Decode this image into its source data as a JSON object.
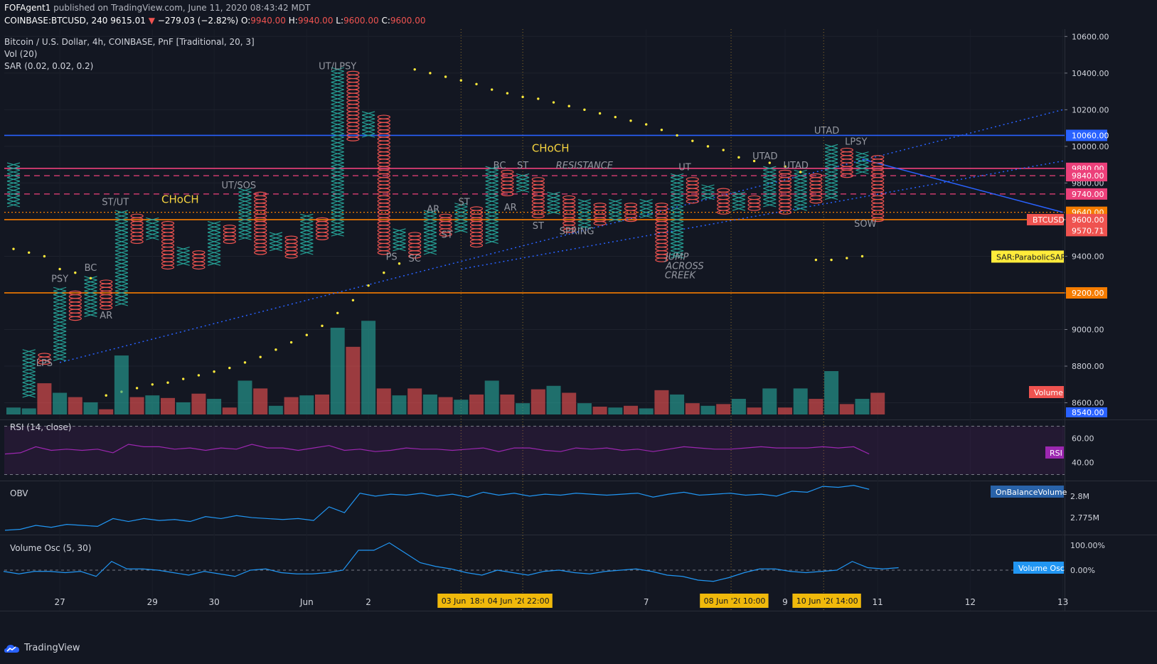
{
  "header": {
    "author": "FOFAgent1",
    "published": "published on TradingView.com, June 11, 2020 08:43:42 MDT",
    "symbol": "COINBASE:BTCUSD, 240",
    "last": "9615.01",
    "change": "−279.03 (−2.82%)",
    "o_label": "O:",
    "o": "9940.00",
    "h_label": "H:",
    "h": "9940.00",
    "l_label": "L:",
    "l": "9600.00",
    "c_label": "C:",
    "c": "9600.00"
  },
  "legend": {
    "main": "Bitcoin / U.S. Dollar, 4h, COINBASE, PnF [Traditional, 20, 3]",
    "vol": "Vol (20)",
    "sar": "SAR (0.02, 0.02, 0.2)"
  },
  "footer": {
    "brand": "TradingView"
  },
  "colors": {
    "background": "#131722",
    "x_color": "#26a69a",
    "o_color": "#ef5350",
    "volume_up": "#26a69a",
    "volume_down": "#ef5350",
    "sar": "#ffeb3b",
    "hline_blue": "#2962ff",
    "hline_orange": "#f57c00",
    "hline_pink": "#ec407a",
    "rsi": "#9c27b0",
    "obv": "#2196f3",
    "vosc": "#2196f3",
    "label_gold": "#f0b90b"
  },
  "chart_data": {
    "type": "pnf",
    "title": "Bitcoin / U.S. Dollar, 4h, COINBASE, PnF [Traditional, 20, 3]",
    "box_size": 20,
    "reversal": 3,
    "price_axis": {
      "range": [
        8540,
        10640
      ],
      "ticks": [
        8600,
        8800,
        9000,
        9200,
        9400,
        9600,
        9800,
        10000,
        10200,
        10400,
        10600
      ],
      "tick_labels": [
        "8600.00",
        "8800.00",
        "9000.00",
        "9200.00",
        "9400.00",
        "9600.00",
        "9800.00",
        "10000.00",
        "10200.00",
        "10400.00",
        "10600.00"
      ]
    },
    "time_axis": {
      "ticks": [
        {
          "label": "27",
          "col": 3
        },
        {
          "label": "29",
          "col": 9
        },
        {
          "label": "30",
          "col": 13
        },
        {
          "label": "Jun",
          "col": 19
        },
        {
          "label": "2",
          "col": 23
        },
        {
          "label": "7",
          "col": 41
        },
        {
          "label": "9",
          "col": 50
        },
        {
          "label": "11",
          "col": 56
        },
        {
          "label": "12",
          "col": 62
        },
        {
          "label": "13",
          "col": 68
        }
      ],
      "markers": [
        {
          "label": "03 Jun '20",
          "col": 29
        },
        {
          "label": "18:00",
          "col": 30.3
        },
        {
          "label": "04 Jun '20",
          "col": 32
        },
        {
          "label": "22:00",
          "col": 34
        },
        {
          "label": "08 Jun '20",
          "col": 46
        },
        {
          "label": "10:00",
          "col": 48
        },
        {
          "label": "10 Jun '20",
          "col": 52
        },
        {
          "label": "14:00",
          "col": 54
        }
      ],
      "vlines": [
        29,
        33,
        46.5,
        52.5
      ]
    },
    "columns": [
      {
        "t": "X",
        "lo": 9680,
        "hi": 9900
      },
      {
        "t": "X",
        "lo": 8640,
        "hi": 8880
      },
      {
        "t": "O",
        "lo": 8820,
        "hi": 8860
      },
      {
        "t": "X",
        "lo": 8840,
        "hi": 9220
      },
      {
        "t": "O",
        "lo": 9060,
        "hi": 9200
      },
      {
        "t": "X",
        "lo": 9080,
        "hi": 9280
      },
      {
        "t": "O",
        "lo": 9120,
        "hi": 9260
      },
      {
        "t": "X",
        "lo": 9140,
        "hi": 9640
      },
      {
        "t": "O",
        "lo": 9480,
        "hi": 9620
      },
      {
        "t": "X",
        "lo": 9500,
        "hi": 9600
      },
      {
        "t": "O",
        "lo": 9340,
        "hi": 9580
      },
      {
        "t": "X",
        "lo": 9360,
        "hi": 9440
      },
      {
        "t": "O",
        "lo": 9340,
        "hi": 9420
      },
      {
        "t": "X",
        "lo": 9360,
        "hi": 9580
      },
      {
        "t": "O",
        "lo": 9480,
        "hi": 9560
      },
      {
        "t": "X",
        "lo": 9500,
        "hi": 9760
      },
      {
        "t": "O",
        "lo": 9420,
        "hi": 9740
      },
      {
        "t": "X",
        "lo": 9440,
        "hi": 9520
      },
      {
        "t": "O",
        "lo": 9400,
        "hi": 9500
      },
      {
        "t": "X",
        "lo": 9420,
        "hi": 9620
      },
      {
        "t": "O",
        "lo": 9500,
        "hi": 9600
      },
      {
        "t": "X",
        "lo": 9520,
        "hi": 10420
      },
      {
        "t": "O",
        "lo": 10040,
        "hi": 10400
      },
      {
        "t": "X",
        "lo": 10060,
        "hi": 10180
      },
      {
        "t": "O",
        "lo": 9420,
        "hi": 10160
      },
      {
        "t": "X",
        "lo": 9440,
        "hi": 9540
      },
      {
        "t": "O",
        "lo": 9400,
        "hi": 9520
      },
      {
        "t": "X",
        "lo": 9420,
        "hi": 9640
      },
      {
        "t": "O",
        "lo": 9520,
        "hi": 9620
      },
      {
        "t": "X",
        "lo": 9540,
        "hi": 9680
      },
      {
        "t": "O",
        "lo": 9460,
        "hi": 9660
      },
      {
        "t": "X",
        "lo": 9480,
        "hi": 9880
      },
      {
        "t": "O",
        "lo": 9740,
        "hi": 9860
      },
      {
        "t": "X",
        "lo": 9760,
        "hi": 9840
      },
      {
        "t": "O",
        "lo": 9620,
        "hi": 9820
      },
      {
        "t": "X",
        "lo": 9640,
        "hi": 9740
      },
      {
        "t": "O",
        "lo": 9540,
        "hi": 9720
      },
      {
        "t": "X",
        "lo": 9560,
        "hi": 9700
      },
      {
        "t": "O",
        "lo": 9580,
        "hi": 9680
      },
      {
        "t": "X",
        "lo": 9600,
        "hi": 9700
      },
      {
        "t": "O",
        "lo": 9600,
        "hi": 9680
      },
      {
        "t": "X",
        "lo": 9620,
        "hi": 9700
      },
      {
        "t": "O",
        "lo": 9380,
        "hi": 9680
      },
      {
        "t": "X",
        "lo": 9400,
        "hi": 9840
      },
      {
        "t": "O",
        "lo": 9700,
        "hi": 9820
      },
      {
        "t": "X",
        "lo": 9720,
        "hi": 9780
      },
      {
        "t": "O",
        "lo": 9640,
        "hi": 9760
      },
      {
        "t": "X",
        "lo": 9660,
        "hi": 9740
      },
      {
        "t": "O",
        "lo": 9660,
        "hi": 9720
      },
      {
        "t": "X",
        "lo": 9680,
        "hi": 9880
      },
      {
        "t": "O",
        "lo": 9640,
        "hi": 9860
      },
      {
        "t": "X",
        "lo": 9660,
        "hi": 9860
      },
      {
        "t": "O",
        "lo": 9700,
        "hi": 9840
      },
      {
        "t": "X",
        "lo": 9720,
        "hi": 10000
      },
      {
        "t": "O",
        "lo": 9840,
        "hi": 9980
      },
      {
        "t": "X",
        "lo": 9860,
        "hi": 9960
      },
      {
        "t": "O",
        "lo": 9600,
        "hi": 9940
      }
    ],
    "sar": [
      {
        "col": 0,
        "v": 9440
      },
      {
        "col": 1,
        "v": 9420
      },
      {
        "col": 2,
        "v": 9400
      },
      {
        "col": 3,
        "v": 9330
      },
      {
        "col": 4,
        "v": 9310
      },
      {
        "col": 5,
        "v": 9280
      },
      {
        "col": 6,
        "v": 8640
      },
      {
        "col": 7,
        "v": 8660
      },
      {
        "col": 8,
        "v": 8680
      },
      {
        "col": 9,
        "v": 8700
      },
      {
        "col": 10,
        "v": 8710
      },
      {
        "col": 11,
        "v": 8730
      },
      {
        "col": 12,
        "v": 8750
      },
      {
        "col": 13,
        "v": 8770
      },
      {
        "col": 14,
        "v": 8790
      },
      {
        "col": 15,
        "v": 8820
      },
      {
        "col": 16,
        "v": 8850
      },
      {
        "col": 17,
        "v": 8890
      },
      {
        "col": 18,
        "v": 8930
      },
      {
        "col": 19,
        "v": 8970
      },
      {
        "col": 20,
        "v": 9020
      },
      {
        "col": 21,
        "v": 9090
      },
      {
        "col": 22,
        "v": 9160
      },
      {
        "col": 23,
        "v": 9240
      },
      {
        "col": 24,
        "v": 9310
      },
      {
        "col": 25,
        "v": 9360
      },
      {
        "col": 26,
        "v": 10420
      },
      {
        "col": 27,
        "v": 10400
      },
      {
        "col": 28,
        "v": 10380
      },
      {
        "col": 29,
        "v": 10360
      },
      {
        "col": 30,
        "v": 10340
      },
      {
        "col": 31,
        "v": 10310
      },
      {
        "col": 32,
        "v": 10290
      },
      {
        "col": 33,
        "v": 10270
      },
      {
        "col": 34,
        "v": 10260
      },
      {
        "col": 35,
        "v": 10240
      },
      {
        "col": 36,
        "v": 10220
      },
      {
        "col": 37,
        "v": 10200
      },
      {
        "col": 38,
        "v": 10180
      },
      {
        "col": 39,
        "v": 10160
      },
      {
        "col": 40,
        "v": 10140
      },
      {
        "col": 41,
        "v": 10120
      },
      {
        "col": 42,
        "v": 10090
      },
      {
        "col": 43,
        "v": 10060
      },
      {
        "col": 44,
        "v": 10030
      },
      {
        "col": 45,
        "v": 10000
      },
      {
        "col": 46,
        "v": 9980
      },
      {
        "col": 47,
        "v": 9940
      },
      {
        "col": 48,
        "v": 9920
      },
      {
        "col": 49,
        "v": 9910
      },
      {
        "col": 50,
        "v": 9890
      },
      {
        "col": 51,
        "v": 9860
      },
      {
        "col": 52,
        "v": 9380
      },
      {
        "col": 53,
        "v": 9380
      },
      {
        "col": 54,
        "v": 9390
      },
      {
        "col": 55,
        "v": 9400
      }
    ],
    "hlines": [
      {
        "price": 10060,
        "color": "#2962ff",
        "style": "solid",
        "label": "10060.00"
      },
      {
        "price": 9880,
        "color": "#ec407a",
        "style": "solid",
        "label": "9880.00"
      },
      {
        "price": 9840,
        "color": "#ec407a",
        "style": "dashed",
        "label": "9840.00"
      },
      {
        "price": 9740,
        "color": "#ec407a",
        "style": "dashed",
        "label": "9740.00"
      },
      {
        "price": 9640,
        "color": "#f57c00",
        "style": "dotted",
        "label": "9640.00"
      },
      {
        "price": 9600,
        "color": "#f57c00",
        "style": "solid",
        "label": "9600.00"
      },
      {
        "price": 9200,
        "color": "#f57c00",
        "style": "solid",
        "label": "9200.00"
      }
    ],
    "price_labels": [
      {
        "text": "BTCUSD",
        "value": "9600.00",
        "price": 9600
      },
      {
        "text": "",
        "value": "9570.71",
        "price": 9540
      },
      {
        "text": "SAR:ParabolicSAR",
        "value": "",
        "price": 9400
      }
    ],
    "trendlines": [
      {
        "from": [
          3,
          8820
        ],
        "to": [
          68,
          10200
        ],
        "style": "dotted"
      },
      {
        "from": [
          29,
          9330
        ],
        "to": [
          68,
          9920
        ],
        "style": "dotted"
      },
      {
        "from": [
          55,
          9930
        ],
        "to": [
          68,
          9640
        ],
        "style": "solid"
      }
    ],
    "annotations": [
      {
        "text": "LPS",
        "col": 2,
        "price": 8800,
        "color": "#9598a1"
      },
      {
        "text": "PSY",
        "col": 3,
        "price": 9260,
        "color": "#9598a1"
      },
      {
        "text": "BC",
        "col": 5,
        "price": 9320,
        "color": "#9598a1"
      },
      {
        "text": "AR",
        "col": 6,
        "price": 9060,
        "color": "#9598a1"
      },
      {
        "text": "ST/UT",
        "col": 6.6,
        "price": 9680,
        "color": "#9598a1"
      },
      {
        "text": "CHoCH",
        "col": 10.8,
        "price": 9690,
        "color": "#f5d33f"
      },
      {
        "text": "UT/SOS",
        "col": 14.6,
        "price": 9770,
        "color": "#9598a1"
      },
      {
        "text": "UT/LPSY",
        "col": 21,
        "price": 10420,
        "color": "#9598a1"
      },
      {
        "text": "PS",
        "col": 24.5,
        "price": 9380,
        "color": "#9598a1"
      },
      {
        "text": "SC",
        "col": 26,
        "price": 9370,
        "color": "#9598a1"
      },
      {
        "text": "AR",
        "col": 27.2,
        "price": 9640,
        "color": "#9598a1"
      },
      {
        "text": "ST",
        "col": 28.1,
        "price": 9500,
        "color": "#9598a1"
      },
      {
        "text": "ST",
        "col": 29.2,
        "price": 9680,
        "color": "#9598a1"
      },
      {
        "text": "BC",
        "col": 31.5,
        "price": 9880,
        "color": "#9598a1"
      },
      {
        "text": "ST",
        "col": 33,
        "price": 9880,
        "color": "#9598a1"
      },
      {
        "text": "AR",
        "col": 32.2,
        "price": 9650,
        "color": "#9598a1"
      },
      {
        "text": "CHoCH",
        "col": 34.8,
        "price": 9970,
        "color": "#f5d33f"
      },
      {
        "text": "RESISTANCE",
        "col": 37,
        "price": 9880,
        "color": "#9598a1",
        "italic": true
      },
      {
        "text": "ST",
        "col": 34,
        "price": 9550,
        "color": "#9598a1"
      },
      {
        "text": "SPRING",
        "col": 36.5,
        "price": 9520,
        "color": "#9598a1"
      },
      {
        "text": "UT",
        "col": 43.5,
        "price": 9870,
        "color": "#9598a1"
      },
      {
        "text": "JUMP",
        "col": 43,
        "price": 9380,
        "color": "#9598a1",
        "italic": true
      },
      {
        "text": "ACROSS",
        "col": 43.5,
        "price": 9330,
        "color": "#9598a1",
        "italic": true
      },
      {
        "text": "CREEK",
        "col": 43.2,
        "price": 9280,
        "color": "#9598a1",
        "italic": true
      },
      {
        "text": "UTAD",
        "col": 48.7,
        "price": 9930,
        "color": "#9598a1"
      },
      {
        "text": "UTAD",
        "col": 50.7,
        "price": 9880,
        "color": "#9598a1"
      },
      {
        "text": "UTAD",
        "col": 52.7,
        "price": 10070,
        "color": "#9598a1"
      },
      {
        "text": "LPSY",
        "col": 54.6,
        "price": 10010,
        "color": "#9598a1"
      },
      {
        "text": "SOW",
        "col": 55.2,
        "price": 9560,
        "color": "#9598a1"
      }
    ],
    "volume": {
      "name": "Volume",
      "values": [
        0.08,
        0.07,
        0.36,
        0.25,
        0.2,
        0.14,
        0.06,
        0.68,
        0.2,
        0.22,
        0.19,
        0.14,
        0.24,
        0.18,
        0.08,
        0.39,
        0.3,
        0.1,
        0.2,
        0.22,
        0.23,
        1.0,
        0.78,
        1.08,
        0.3,
        0.22,
        0.3,
        0.23,
        0.2,
        0.17,
        0.23,
        0.39,
        0.23,
        0.13,
        0.29,
        0.33,
        0.25,
        0.13,
        0.09,
        0.08,
        0.1,
        0.07,
        0.28,
        0.23,
        0.13,
        0.1,
        0.12,
        0.18,
        0.08,
        0.3,
        0.08,
        0.3,
        0.18,
        0.5,
        0.12,
        0.18,
        0.25
      ]
    },
    "rsi": {
      "name": "RSI (14, close)",
      "range": [
        30,
        70
      ],
      "ticks": [
        "60.00",
        "40.00"
      ],
      "upper": 70,
      "lower": 30,
      "values": [
        47,
        48,
        53,
        50,
        51,
        50,
        51,
        48,
        55,
        53,
        53,
        51,
        52,
        50,
        52,
        51,
        55,
        52,
        52,
        50,
        52,
        54,
        50,
        51,
        49,
        50,
        52,
        51,
        51,
        50,
        51,
        52,
        49,
        52,
        52,
        50,
        49,
        52,
        51,
        52,
        50,
        51,
        49,
        51,
        53,
        52,
        51,
        51,
        52,
        53,
        52,
        52,
        52,
        53,
        52,
        53,
        47
      ]
    },
    "obv": {
      "name": "OBV",
      "ticks": [
        "2.8M",
        "2.775M"
      ],
      "values": [
        2.758,
        2.759,
        2.763,
        2.761,
        2.764,
        2.763,
        2.762,
        2.77,
        2.767,
        2.77,
        2.768,
        2.769,
        2.767,
        2.772,
        2.77,
        2.773,
        2.771,
        2.77,
        2.769,
        2.77,
        2.768,
        2.782,
        2.776,
        2.796,
        2.793,
        2.795,
        2.794,
        2.796,
        2.793,
        2.795,
        2.792,
        2.797,
        2.794,
        2.796,
        2.793,
        2.795,
        2.794,
        2.796,
        2.795,
        2.794,
        2.795,
        2.796,
        2.792,
        2.795,
        2.797,
        2.794,
        2.795,
        2.796,
        2.794,
        2.795,
        2.793,
        2.798,
        2.797,
        2.803,
        2.802,
        2.804,
        2.8
      ]
    },
    "volume_osc": {
      "name": "Volume Osc (5, 30)",
      "ticks": [
        "100.00%",
        "0.00%"
      ],
      "values": [
        -5,
        -15,
        -5,
        -5,
        -10,
        -5,
        -25,
        35,
        5,
        5,
        0,
        -10,
        -20,
        -5,
        -15,
        -25,
        0,
        5,
        -10,
        -15,
        -15,
        -10,
        0,
        80,
        80,
        110,
        70,
        30,
        15,
        5,
        -10,
        -20,
        0,
        -10,
        -20,
        -5,
        0,
        -10,
        -15,
        -5,
        0,
        5,
        -5,
        -20,
        -25,
        -40,
        -45,
        -30,
        -10,
        5,
        5,
        -5,
        -10,
        -5,
        0,
        35,
        10,
        5,
        10
      ]
    },
    "pane_labels": {
      "volume": "Volume",
      "rsi": "RSI",
      "obv": "OnBalanceVolume",
      "vosc": "Volume Osc"
    }
  }
}
